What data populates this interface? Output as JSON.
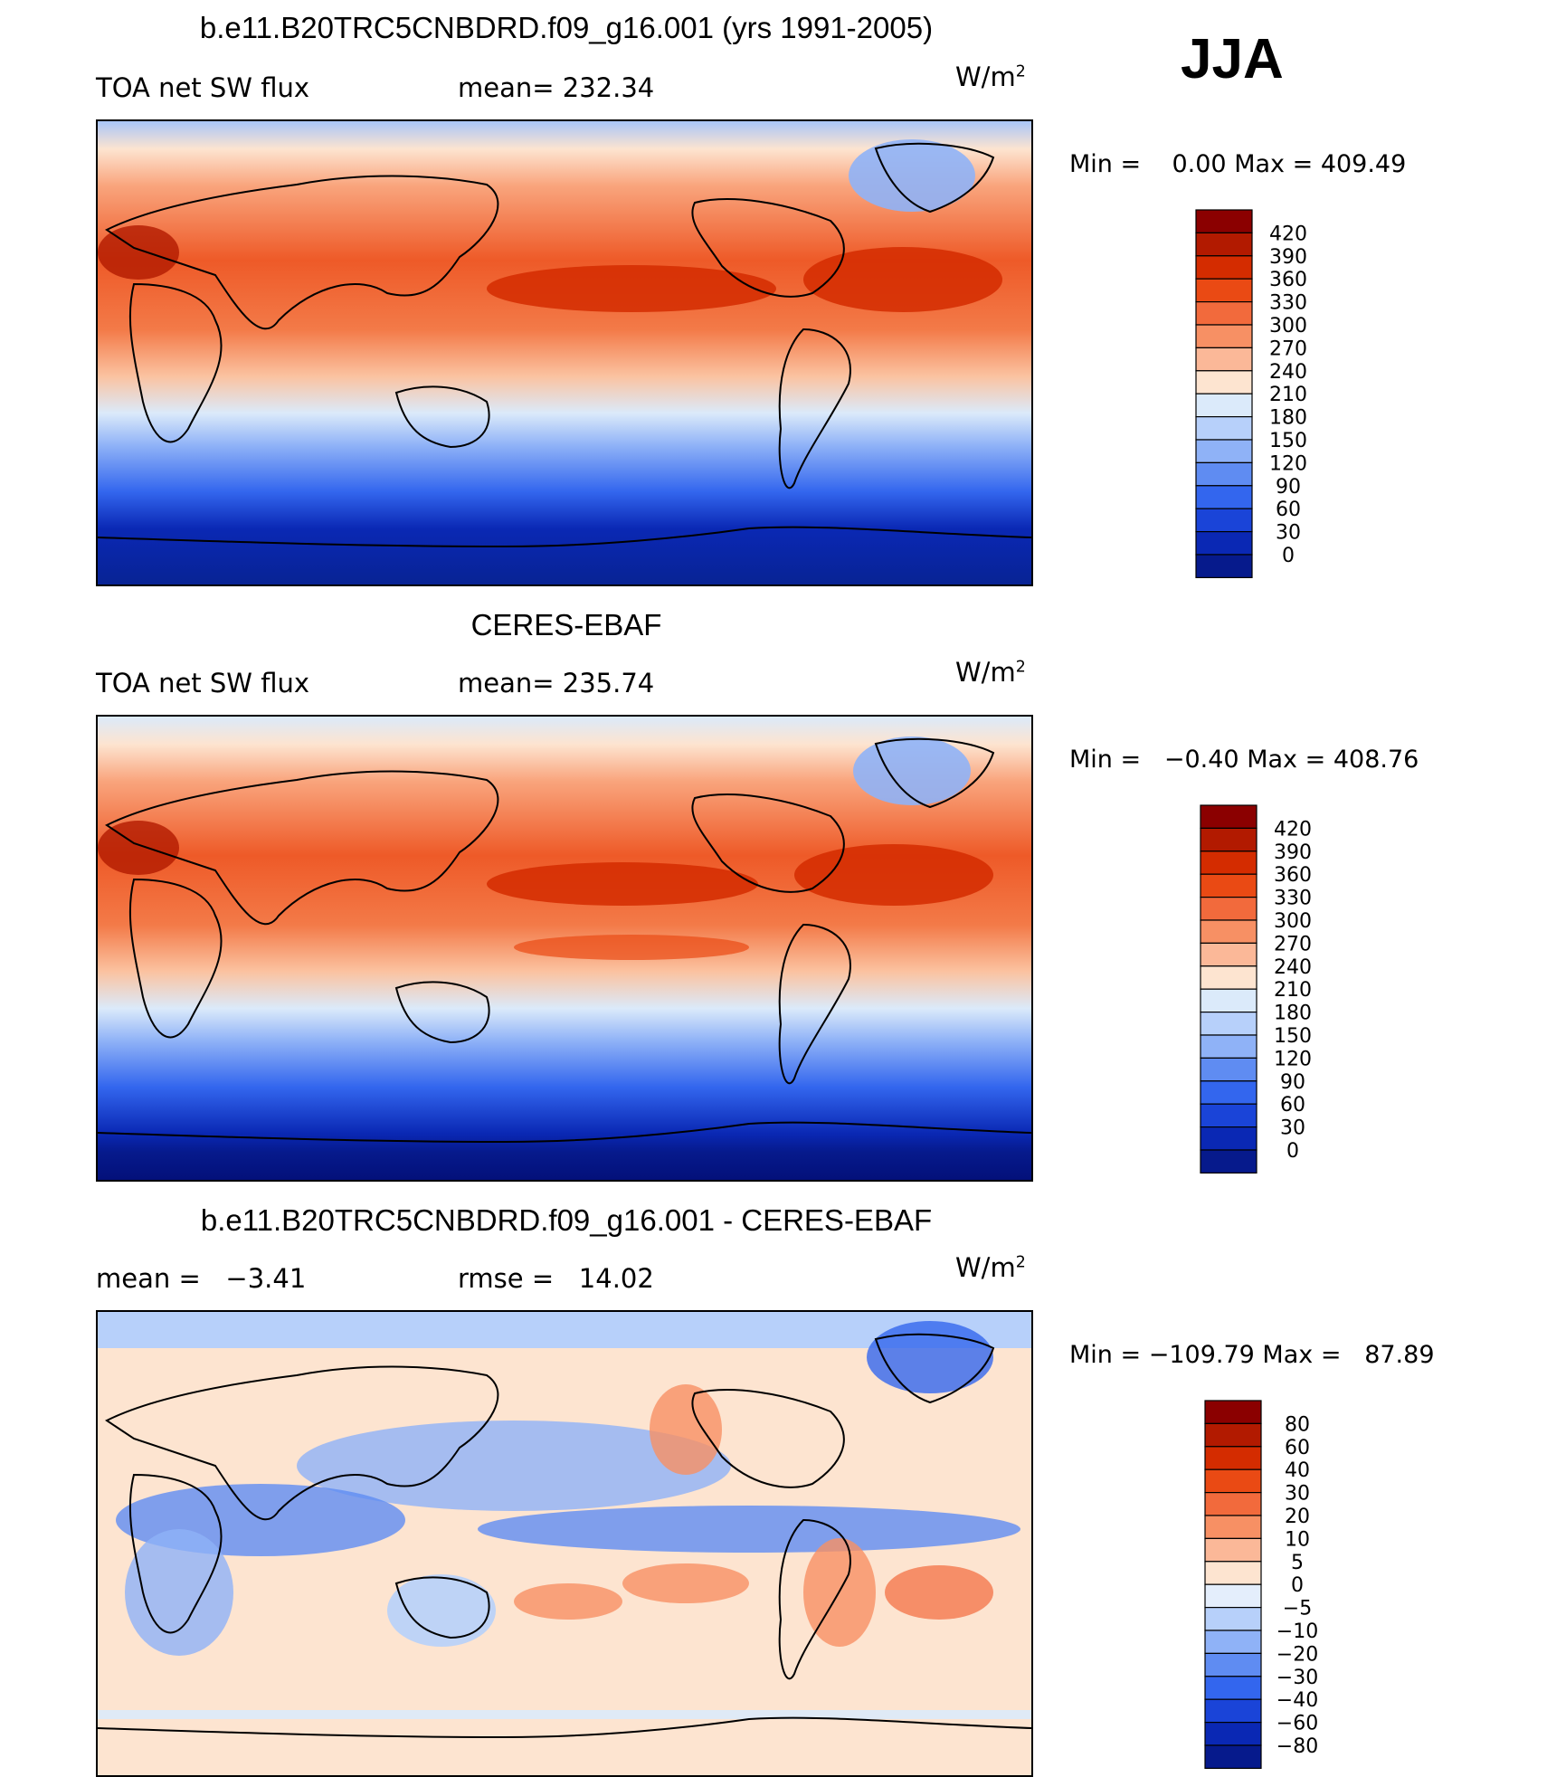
{
  "season": "JJA",
  "units_base": "W/m",
  "units_exp": "2",
  "chart_data": [
    {
      "type": "heatmap",
      "title": "b.e11.B20TRC5CNBDRD.f09_g16.001 (yrs 1991-2005)",
      "left_label": "TOA net SW flux",
      "stat_label": "mean=",
      "stat_value": "232.34",
      "min_label": "Min =",
      "min_value": "0.00",
      "max_label": "Max =",
      "max_value": "409.49",
      "colorbar_levels": [
        "420",
        "390",
        "360",
        "330",
        "300",
        "270",
        "240",
        "210",
        "180",
        "150",
        "120",
        "90",
        "60",
        "30",
        "0"
      ],
      "colorbar_colors": [
        "#8b0000",
        "#b21a00",
        "#d42c00",
        "#ea4a14",
        "#f26a3c",
        "#f79064",
        "#fbb898",
        "#fde4d0",
        "#dbeafa",
        "#b7d0fa",
        "#8fb2f7",
        "#5f8cf2",
        "#3366ee",
        "#1a44d8",
        "#0a28b4",
        "#061a8c"
      ],
      "mean_value": 232.34
    },
    {
      "type": "heatmap",
      "title": "CERES-EBAF",
      "left_label": "TOA net SW flux",
      "stat_label": "mean=",
      "stat_value": "235.74",
      "min_label": "Min =",
      "min_value": "−0.40",
      "max_label": "Max =",
      "max_value": "408.76",
      "colorbar_levels": [
        "420",
        "390",
        "360",
        "330",
        "300",
        "270",
        "240",
        "210",
        "180",
        "150",
        "120",
        "90",
        "60",
        "30",
        "0"
      ],
      "colorbar_colors": [
        "#8b0000",
        "#b21a00",
        "#d42c00",
        "#ea4a14",
        "#f26a3c",
        "#f79064",
        "#fbb898",
        "#fde4d0",
        "#dbeafa",
        "#b7d0fa",
        "#8fb2f7",
        "#5f8cf2",
        "#3366ee",
        "#1a44d8",
        "#0a28b4",
        "#061a8c"
      ],
      "mean_value": 235.74
    },
    {
      "type": "heatmap",
      "title": "b.e11.B20TRC5CNBDRD.f09_g16.001 - CERES-EBAF",
      "left_label": "mean =",
      "left_value": "−3.41",
      "stat_label": "rmse =",
      "stat_value": "14.02",
      "min_label": "Min =",
      "min_value": "−109.79",
      "max_label": "Max =",
      "max_value": "87.89",
      "colorbar_levels": [
        "80",
        "60",
        "40",
        "30",
        "20",
        "10",
        "5",
        "0",
        "−5",
        "−10",
        "−20",
        "−30",
        "−40",
        "−60",
        "−80"
      ],
      "colorbar_colors": [
        "#8b0000",
        "#b21a00",
        "#d42c00",
        "#ea4a14",
        "#f26a3c",
        "#f79064",
        "#fbb898",
        "#fde4d0",
        "#e4eefc",
        "#b7d0fa",
        "#8fb2f7",
        "#5f8cf2",
        "#3366ee",
        "#1a44d8",
        "#0a28b4",
        "#061a8c"
      ],
      "mean_value": -3.41
    }
  ]
}
